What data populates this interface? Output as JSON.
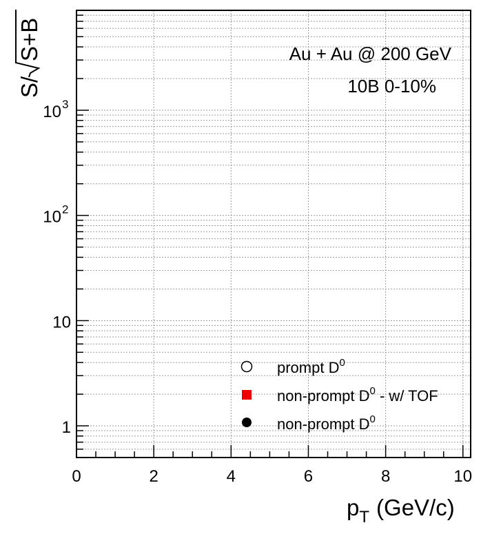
{
  "chart_data": {
    "type": "scatter",
    "xlabel": "p",
    "xlabel_sub": "T",
    "xlabel_unit": "(GeV/c)",
    "ylabel_prefix": "S/",
    "ylabel_radicand": "S+B",
    "xlim": [
      0,
      10.2
    ],
    "ylim": [
      0.5,
      8900
    ],
    "yscale": "log",
    "grid": true,
    "x_ticks": [
      {
        "value": 0,
        "label": "0"
      },
      {
        "value": 2,
        "label": "2"
      },
      {
        "value": 4,
        "label": "4"
      },
      {
        "value": 6,
        "label": "6"
      },
      {
        "value": 8,
        "label": "8"
      },
      {
        "value": 10,
        "label": "10"
      }
    ],
    "y_ticks": [
      {
        "value": 1,
        "label": "1",
        "sup": ""
      },
      {
        "value": 10,
        "label": "10",
        "sup": ""
      },
      {
        "value": 100,
        "label": "10",
        "sup": "2"
      },
      {
        "value": 1000,
        "label": "10",
        "sup": "3"
      }
    ],
    "annotations": [
      {
        "text": "Au + Au @ 200 GeV"
      },
      {
        "text": "10B 0-10%"
      }
    ],
    "legend_position": "bottom-right",
    "series": [
      {
        "name": "prompt D",
        "name_sup": "0",
        "suffix": "",
        "marker": "open-circle",
        "color": "#000000",
        "points": []
      },
      {
        "name": "non-prompt D",
        "name_sup": "0",
        "suffix": " - w/ TOF",
        "marker": "filled-square",
        "color": "#ee0000",
        "points": []
      },
      {
        "name": "non-prompt D",
        "name_sup": "0",
        "suffix": "",
        "marker": "filled-circle",
        "color": "#000000",
        "points": []
      }
    ]
  }
}
